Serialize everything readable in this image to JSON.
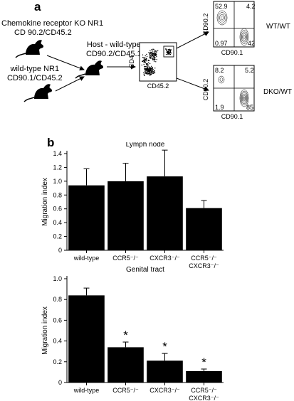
{
  "panel_a": {
    "letter": "a",
    "donor_ko": {
      "line1": "Chemokine receptor KO NR1",
      "line2": "CD 90.2/CD45.2"
    },
    "host": {
      "line1": "Host - wild-type",
      "line2": "CD90.2/CD45.1"
    },
    "donor_wt": {
      "line1": "wild-type NR1",
      "line2": "CD90.1/CD45.2"
    },
    "gate_plot": {
      "ylabel": "CD4",
      "xlabel": "CD45.2"
    },
    "plots": [
      {
        "label": "WT/WT",
        "ylabel": "CD90.2",
        "xlabel": "CD90.1",
        "q_tl": "52.9",
        "q_tr": "4.2",
        "q_bl": "0.97",
        "q_br": "42"
      },
      {
        "label": "DKO/WT",
        "ylabel": "CD90.2",
        "xlabel": "CD90.1",
        "q_tl": "8.2",
        "q_tr": "5.2",
        "q_bl": "1.9",
        "q_br": "85"
      }
    ]
  },
  "panel_b": {
    "letter": "b"
  },
  "chart_data": [
    {
      "type": "bar",
      "title": "Lymph node",
      "ylabel": "Migration index",
      "categories": [
        "wild-type",
        "CCR5⁻/⁻",
        "CXCR3⁻/⁻",
        "CCR5⁻/⁻ CXCR3⁻/⁻"
      ],
      "values": [
        0.94,
        1.0,
        1.07,
        0.61
      ],
      "errors": [
        0.24,
        0.26,
        0.38,
        0.11
      ],
      "ylim": [
        0,
        1.4
      ],
      "yticks": [
        "0",
        "0.2",
        "0.4",
        "0.6",
        "0.8",
        "1.0",
        "1.2",
        "1.4"
      ],
      "significance": [
        "",
        "",
        "",
        ""
      ]
    },
    {
      "type": "bar",
      "title": "Genital tract",
      "ylabel": "Migration index",
      "categories": [
        "wild-type",
        "CCR5⁻/⁻",
        "CXCR3⁻/⁻",
        "CCR5⁻/⁻ CXCR3⁻/⁻"
      ],
      "values": [
        0.84,
        0.34,
        0.21,
        0.11
      ],
      "errors": [
        0.07,
        0.05,
        0.07,
        0.02
      ],
      "ylim": [
        0,
        1.0
      ],
      "yticks": [
        "0",
        "0.2",
        "0.4",
        "0.6",
        "0.8",
        "1.0"
      ],
      "significance": [
        "",
        "*",
        "*",
        "*"
      ]
    }
  ]
}
